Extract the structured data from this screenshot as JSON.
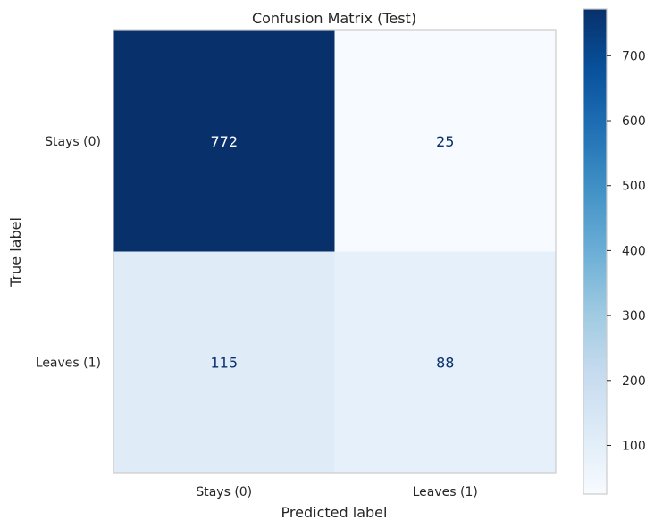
{
  "chart_data": {
    "type": "heatmap",
    "title": "Confusion Matrix (Test)",
    "xlabel": "Predicted label",
    "ylabel": "True label",
    "x_categories": [
      "Stays (0)",
      "Leaves (1)"
    ],
    "y_categories": [
      "Stays (0)",
      "Leaves (1)"
    ],
    "values": [
      [
        772,
        25
      ],
      [
        115,
        88
      ]
    ],
    "colormap": "Blues",
    "colorbar": {
      "range": [
        25,
        772
      ],
      "ticks": [
        100,
        200,
        300,
        400,
        500,
        600,
        700
      ]
    },
    "grid": false
  }
}
